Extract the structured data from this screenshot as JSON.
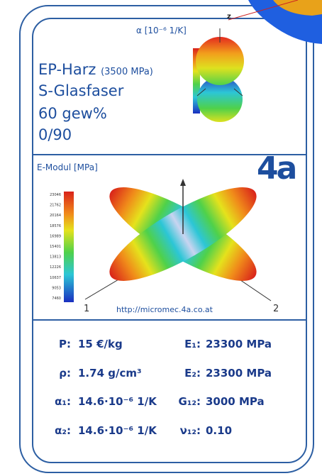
{
  "header": {
    "corner_label": "z"
  },
  "top": {
    "scale_title": "α [10⁻⁶ 1/K]",
    "lines": [
      "EP-Harz",
      "S-Glasfaser",
      "60 gew%",
      "0/90"
    ],
    "resin_note": "(3500 MPa)"
  },
  "middle": {
    "scale_title": "E-Modul [MPa]",
    "logo": "4a",
    "url": "http://micromec.4a.co.at",
    "axis_1": "1",
    "axis_2": "2",
    "scale_labels": [
      "23046",
      "21762",
      "20164",
      "18576",
      "16989",
      "15401",
      "13813",
      "12226",
      "10637",
      "9053",
      "7460"
    ]
  },
  "properties": {
    "rows": [
      [
        "P:",
        "15 €/kg",
        "E₁:",
        "23300 MPa"
      ],
      [
        "ρ:",
        "1.74 g/cm³",
        "E₂:",
        "23300 MPa"
      ],
      [
        "α₁:",
        "14.6·10⁻⁶ 1/K",
        "G₁₂:",
        "3000 MPa"
      ],
      [
        "α₂:",
        "14.6·10⁻⁶ 1/K",
        "ν₁₂:",
        "0.10"
      ]
    ]
  }
}
